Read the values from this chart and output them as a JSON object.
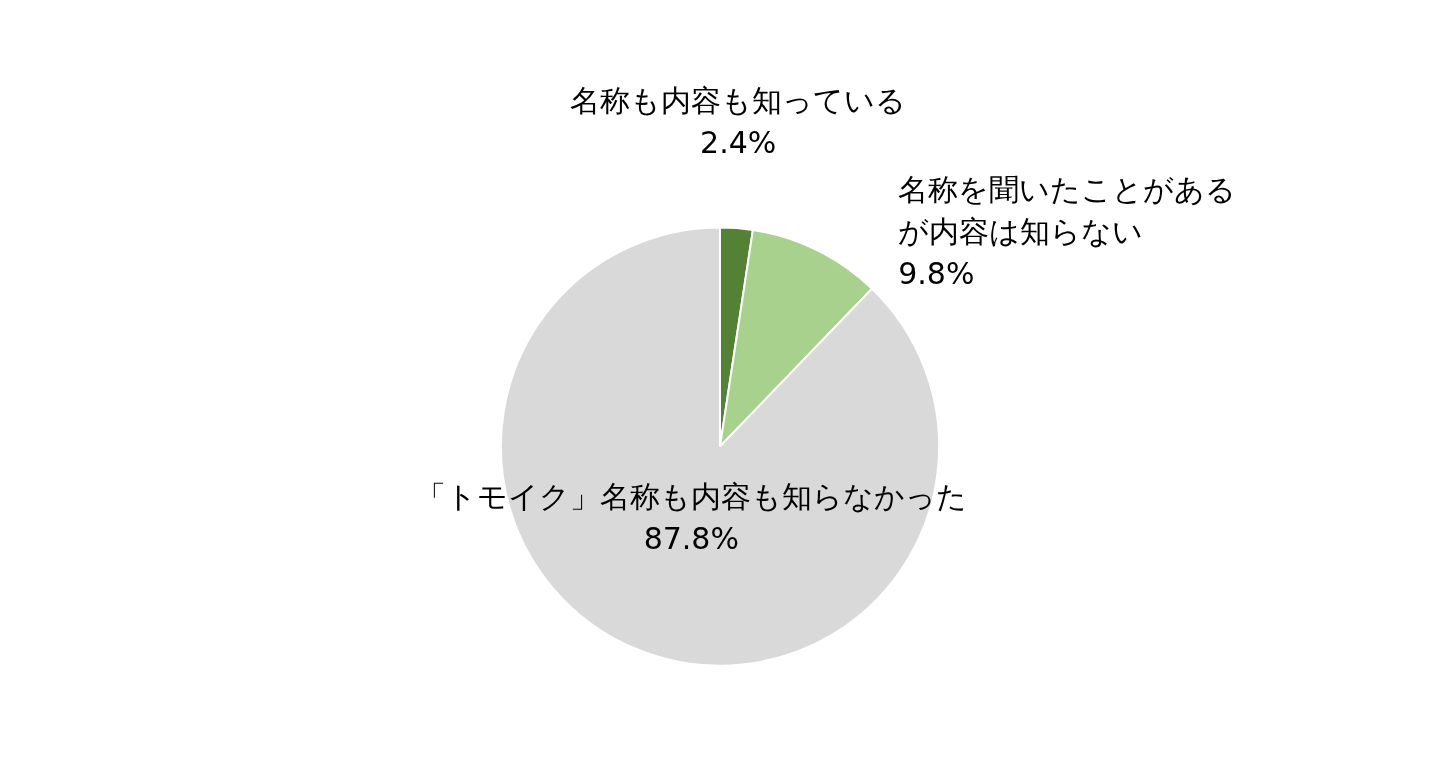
{
  "chart_data": {
    "type": "pie",
    "categories": [
      "名称も内容も知っている",
      "名称を聞いたことがあるが内容は知らない",
      "「トモイク」名称も内容も知らなかった"
    ],
    "values": [
      2.4,
      9.8,
      87.8
    ],
    "colors": [
      "#548235",
      "#a9d18e",
      "#d9d9d9"
    ],
    "value_labels": [
      "2.4%",
      "9.8%",
      "87.8%"
    ]
  }
}
